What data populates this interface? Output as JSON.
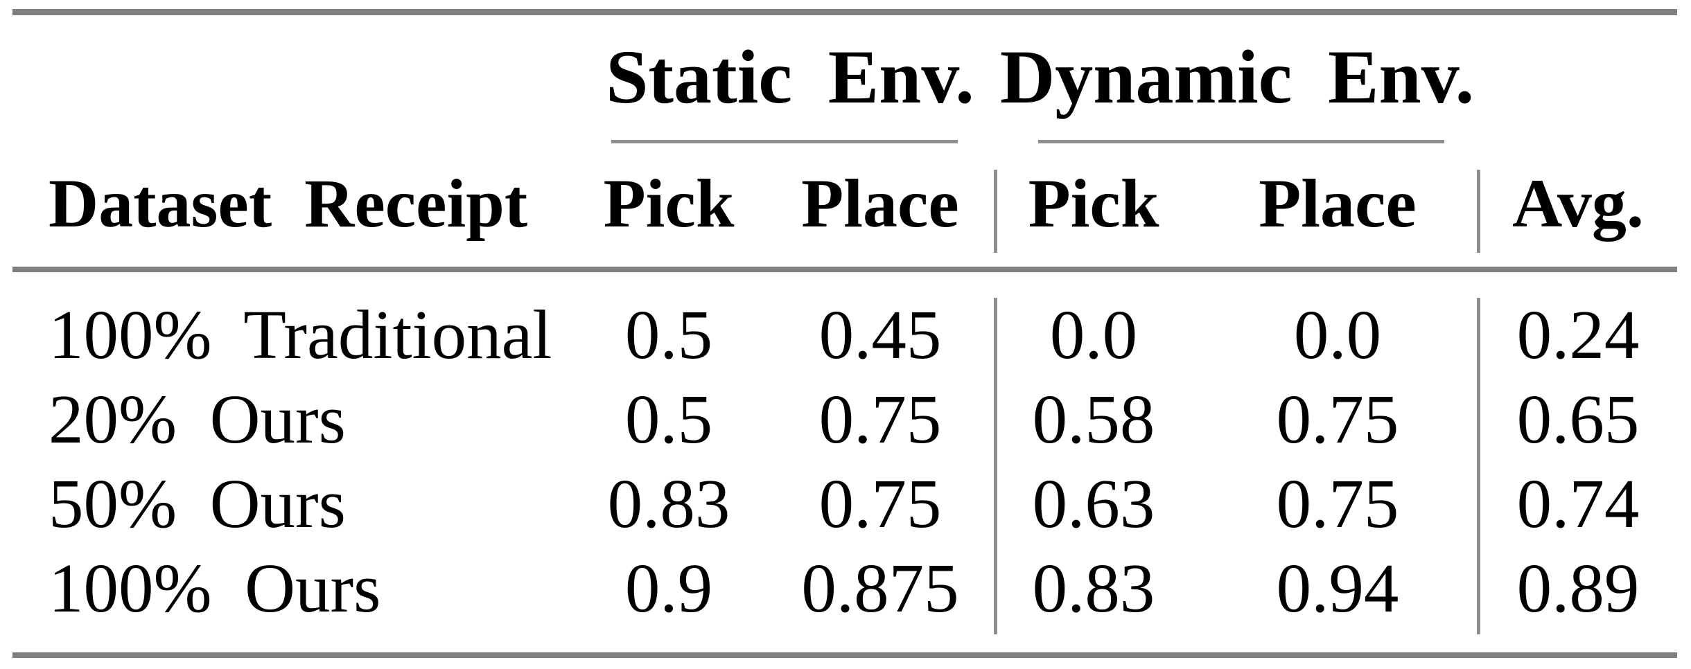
{
  "table": {
    "group_headers": [
      {
        "label": "Static Env."
      },
      {
        "label": "Dynamic Env."
      }
    ],
    "column_headers": {
      "dataset": "Dataset Receipt",
      "static_pick": "Pick",
      "static_place": "Place",
      "dynamic_pick": "Pick",
      "dynamic_place": "Place",
      "avg": "Avg."
    },
    "rows": [
      {
        "dataset": "100% Traditional",
        "static_pick": "0.5",
        "static_place": "0.45",
        "dynamic_pick": "0.0",
        "dynamic_place": "0.0",
        "avg": "0.24"
      },
      {
        "dataset": "20% Ours",
        "static_pick": "0.5",
        "static_place": "0.75",
        "dynamic_pick": "0.58",
        "dynamic_place": "0.75",
        "avg": "0.65"
      },
      {
        "dataset": "50% Ours",
        "static_pick": "0.83",
        "static_place": "0.75",
        "dynamic_pick": "0.63",
        "dynamic_place": "0.75",
        "avg": "0.74"
      },
      {
        "dataset": "100% Ours",
        "static_pick": "0.9",
        "static_place": "0.875",
        "dynamic_pick": "0.83",
        "dynamic_place": "0.94",
        "avg": "0.89"
      }
    ],
    "colors": {
      "heavy_rule": "#7f7f7f",
      "light_rule": "#8d8d8d",
      "text": "#000000",
      "background": "#ffffff"
    }
  }
}
